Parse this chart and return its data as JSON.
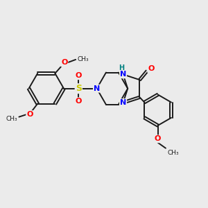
{
  "background_color": "#ebebeb",
  "bond_color": "#1a1a1a",
  "bond_width": 1.4,
  "atom_colors": {
    "N": "#0000ff",
    "O": "#ff0000",
    "S": "#cccc00",
    "H_label": "#008080",
    "C": "#1a1a1a"
  },
  "figsize": [
    3.0,
    3.0
  ],
  "dpi": 100,
  "xlim": [
    0,
    10
  ],
  "ylim": [
    0,
    10
  ]
}
